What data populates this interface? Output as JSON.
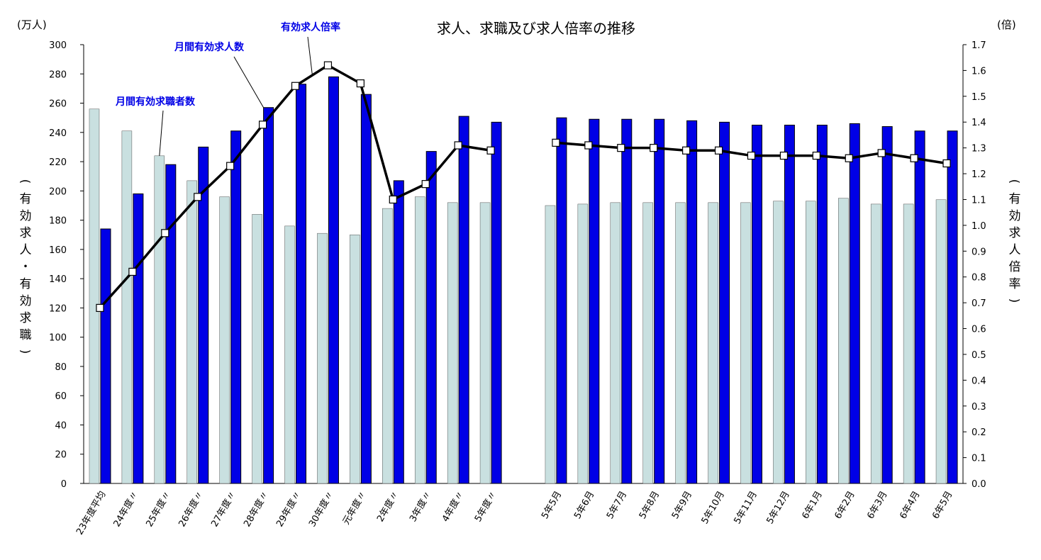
{
  "chart_data": {
    "type": "bar",
    "title": "求人、求職及び求人倍率の推移",
    "left_unit": "(万人)",
    "right_unit": "(倍)",
    "ylabel_left": "(有効求人・有効求職)",
    "ylabel_right": "(有効求人倍率)",
    "ylim_left": [
      0,
      300
    ],
    "ylim_right": [
      0.0,
      1.7
    ],
    "yticks_left": [
      "0",
      "20",
      "40",
      "60",
      "80",
      "100",
      "120",
      "140",
      "160",
      "180",
      "200",
      "220",
      "240",
      "260",
      "280",
      "300"
    ],
    "yticks_right": [
      "0.0",
      "0.1",
      "0.2",
      "0.3",
      "0.4",
      "0.5",
      "0.6",
      "0.7",
      "0.8",
      "0.9",
      "1.0",
      "1.1",
      "1.2",
      "1.3",
      "1.4",
      "1.5",
      "1.6",
      "1.7"
    ],
    "categories": [
      "23年度平均",
      "24年度〃",
      "25年度〃",
      "26年度〃",
      "27年度〃",
      "28年度〃",
      "29年度〃",
      "30年度〃",
      "元年度〃",
      "2年度〃",
      "3年度〃",
      "4年度〃",
      "5年度〃",
      "",
      "5年5月",
      "5年6月",
      "5年7月",
      "5年8月",
      "5年9月",
      "5年10月",
      "5年11月",
      "5年12月",
      "6年1月",
      "6年2月",
      "6年3月",
      "6年4月",
      "6年5月"
    ],
    "series": [
      {
        "name": "月間有効求職者数",
        "axis": "left",
        "color": "#c9e0e0",
        "values": [
          256,
          241,
          224,
          207,
          196,
          184,
          176,
          171,
          170,
          188,
          196,
          192,
          192,
          null,
          190,
          191,
          192,
          192,
          192,
          192,
          192,
          193,
          193,
          195,
          191,
          191,
          194
        ]
      },
      {
        "name": "月間有効求人数",
        "axis": "left",
        "color": "#0000e6",
        "values": [
          174,
          198,
          218,
          230,
          241,
          257,
          273,
          278,
          266,
          207,
          227,
          251,
          247,
          null,
          250,
          249,
          249,
          249,
          248,
          247,
          245,
          245,
          245,
          246,
          244,
          241,
          241
        ]
      },
      {
        "name": "有効求人倍率",
        "axis": "right",
        "type": "line",
        "color": "#000000",
        "values": [
          0.68,
          0.82,
          0.97,
          1.11,
          1.23,
          1.39,
          1.54,
          1.62,
          1.55,
          1.1,
          1.16,
          1.31,
          1.29,
          null,
          1.32,
          1.31,
          1.3,
          1.3,
          1.29,
          1.29,
          1.27,
          1.27,
          1.27,
          1.26,
          1.28,
          1.26,
          1.24
        ]
      }
    ],
    "annotations": [
      {
        "text": "月間有効求職者数",
        "series": "月間有効求職者数",
        "color": "#0000e6"
      },
      {
        "text": "月間有効求人数",
        "series": "月間有効求人数",
        "color": "#0000e6"
      },
      {
        "text": "有効求人倍率",
        "series": "有効求人倍率",
        "color": "#0000e6"
      }
    ],
    "grid": false,
    "legend": "none"
  }
}
